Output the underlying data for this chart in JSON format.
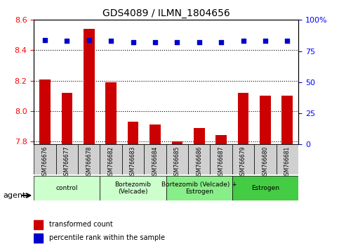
{
  "title": "GDS4089 / ILMN_1804656",
  "samples": [
    "GSM766676",
    "GSM766677",
    "GSM766678",
    "GSM766682",
    "GSM766683",
    "GSM766684",
    "GSM766685",
    "GSM766686",
    "GSM766687",
    "GSM766679",
    "GSM766680",
    "GSM766681"
  ],
  "bar_values": [
    8.21,
    8.12,
    8.54,
    8.19,
    7.93,
    7.91,
    7.8,
    7.89,
    7.84,
    8.12,
    8.1,
    8.1
  ],
  "dot_values": [
    84,
    83,
    84,
    83,
    82,
    82,
    82,
    82,
    82,
    83,
    83,
    83
  ],
  "bar_color": "#CC0000",
  "dot_color": "#0000CC",
  "ylim_left": [
    7.78,
    8.6
  ],
  "ylim_right": [
    0,
    100
  ],
  "yticks_left": [
    7.8,
    8.0,
    8.2,
    8.4,
    8.6
  ],
  "yticks_right": [
    0,
    25,
    50,
    75,
    100
  ],
  "groups": [
    {
      "label": "control",
      "start": 0,
      "end": 3,
      "color": "#ccffcc"
    },
    {
      "label": "Bortezomib\n(Velcade)",
      "start": 3,
      "end": 6,
      "color": "#ccffcc"
    },
    {
      "label": "Bortezomib (Velcade) +\nEstrogen",
      "start": 6,
      "end": 9,
      "color": "#88ee88"
    },
    {
      "label": "Estrogen",
      "start": 9,
      "end": 12,
      "color": "#44cc44"
    }
  ],
  "agent_label": "agent",
  "legend_bar_label": "transformed count",
  "legend_dot_label": "percentile rank within the sample",
  "bar_bottom": 7.78
}
